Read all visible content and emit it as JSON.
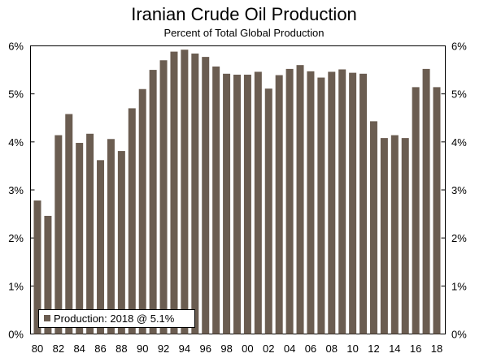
{
  "chart_data": {
    "type": "bar",
    "title": "Iranian Crude Oil Production",
    "subtitle": "Percent of Total Global Production",
    "legend": "Production: 2018 @ 5.1%",
    "legend_position": "bottom-left",
    "series": [
      {
        "name": "Production",
        "color": "#6b5d51",
        "values": [
          2.78,
          2.46,
          4.14,
          4.58,
          3.98,
          4.17,
          3.62,
          4.06,
          3.81,
          4.7,
          5.1,
          5.5,
          5.7,
          5.88,
          5.92,
          5.84,
          5.77,
          5.57,
          5.42,
          5.4,
          5.4,
          5.46,
          5.11,
          5.39,
          5.52,
          5.6,
          5.47,
          5.34,
          5.46,
          5.51,
          5.44,
          5.42,
          4.43,
          4.08,
          4.14,
          4.08,
          5.14,
          5.52,
          5.14
        ]
      }
    ],
    "categories": [
      "80",
      "81",
      "82",
      "83",
      "84",
      "85",
      "86",
      "87",
      "88",
      "89",
      "90",
      "91",
      "92",
      "93",
      "94",
      "95",
      "96",
      "97",
      "98",
      "99",
      "00",
      "01",
      "02",
      "03",
      "04",
      "05",
      "06",
      "07",
      "08",
      "09",
      "10",
      "11",
      "12",
      "13",
      "14",
      "15",
      "16",
      "17",
      "18"
    ],
    "x_tick_labels": [
      "80",
      "82",
      "84",
      "86",
      "88",
      "90",
      "92",
      "94",
      "96",
      "98",
      "00",
      "02",
      "04",
      "06",
      "08",
      "10",
      "12",
      "14",
      "16",
      "18"
    ],
    "y_ticks": [
      "0%",
      "1%",
      "2%",
      "3%",
      "4%",
      "5%",
      "6%"
    ],
    "ylim": [
      0,
      6
    ],
    "grid": false
  }
}
